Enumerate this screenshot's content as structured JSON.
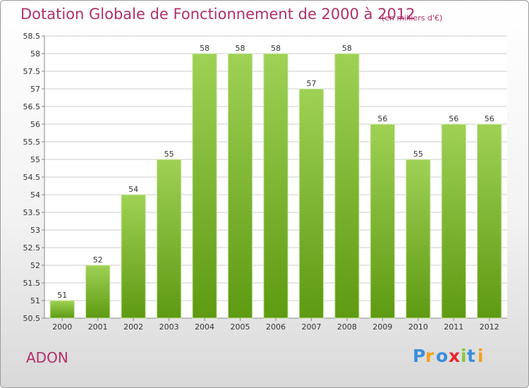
{
  "header": {
    "title": "Dotation Globale de Fonctionnement de 2000 à 2012",
    "unit": "(en milliers d'€)"
  },
  "footer": {
    "town": "ADON",
    "logo": "Proxiti"
  },
  "colors": {
    "accent": "#b0306a",
    "bar_top": "#9fd155",
    "bar_bottom": "#5e9a12",
    "grid": "#cccccc"
  },
  "chart_data": {
    "type": "bar",
    "title": "Dotation Globale de Fonctionnement de 2000 à 2012",
    "xlabel": "",
    "ylabel": "",
    "categories": [
      "2000",
      "2001",
      "2002",
      "2003",
      "2004",
      "2005",
      "2006",
      "2007",
      "2008",
      "2009",
      "2010",
      "2011",
      "2012"
    ],
    "values": [
      51,
      52,
      54,
      55,
      58,
      58,
      58,
      57,
      58,
      56,
      55,
      56,
      56
    ],
    "ylim": [
      50.5,
      58.5
    ],
    "ytick_step": 0.5,
    "yticks": [
      "50.5",
      "51",
      "51.5",
      "52",
      "52.5",
      "53",
      "53.5",
      "54",
      "54.5",
      "55",
      "55.5",
      "56",
      "56.5",
      "57",
      "57.5",
      "58",
      "58.5"
    ],
    "grid": true,
    "legend": "none"
  }
}
